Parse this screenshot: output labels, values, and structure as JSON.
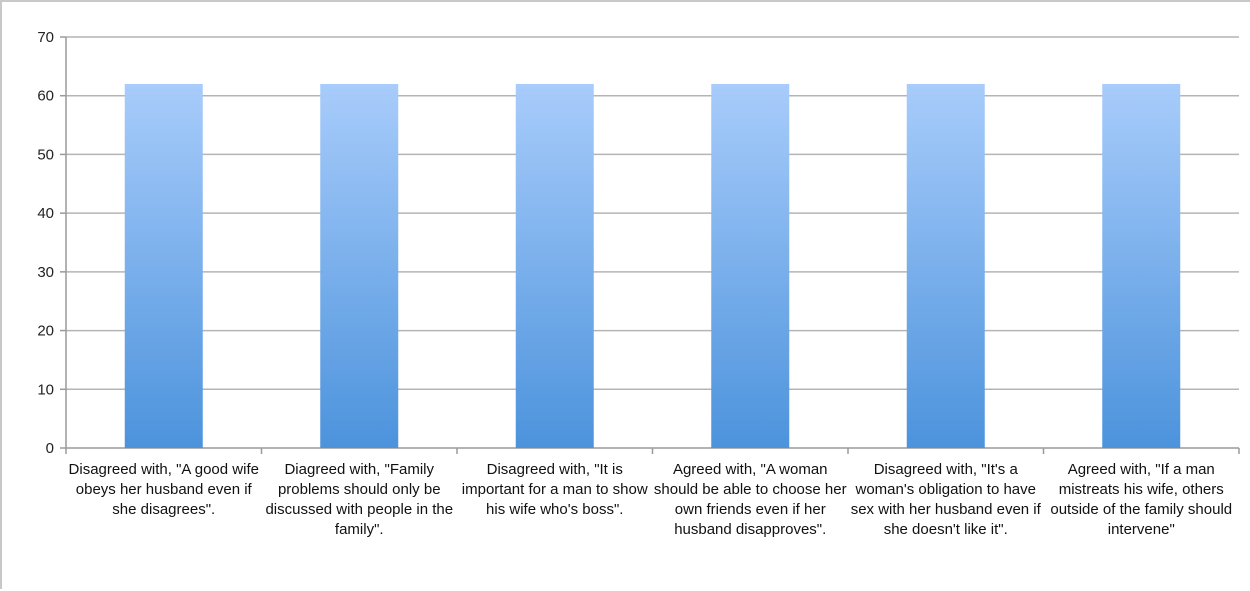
{
  "chart_data": {
    "type": "bar",
    "title": "",
    "xlabel": "",
    "ylabel": "",
    "ylim": [
      0,
      70
    ],
    "yticks": [
      0,
      10,
      20,
      30,
      40,
      50,
      60,
      70
    ],
    "grid": true,
    "legend": "none",
    "bar_color_top": "#a8ccfb",
    "bar_color_bottom": "#4c93dc",
    "categories": [
      "Disagreed with, \"A good wife obeys her husband even if she disagrees\".",
      "Diagreed with, \"Family problems should only be discussed with people in the family\".",
      "Disagreed with, \"It is important for a man to show his wife who's boss\".",
      "Agreed with, \"A woman should be able to choose her own friends even if her husband disapproves\".",
      "Disagreed with, \"It's a woman's obligation to have sex with her husband even if she doesn't like it\".",
      "Agreed with, \"If a man mistreats his wife, others outside of the family should intervene\""
    ],
    "values": [
      62,
      62,
      62,
      62,
      62,
      62
    ]
  }
}
